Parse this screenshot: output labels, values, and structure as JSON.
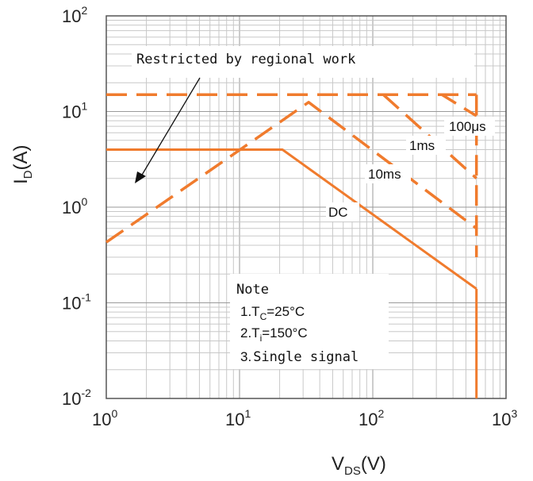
{
  "chart_data": {
    "type": "line",
    "title": "",
    "xscale": "log",
    "yscale": "log",
    "xlim": [
      1,
      1000
    ],
    "ylim": [
      0.01,
      100
    ],
    "grid": true,
    "xlabel": {
      "main": "V",
      "sub": "DS",
      "tail": "(V)"
    },
    "ylabel": {
      "main": "I",
      "sub": "D",
      "tail": "(A)"
    },
    "x_ticks": [
      {
        "base": "10",
        "exp": "0"
      },
      {
        "base": "10",
        "exp": "1"
      },
      {
        "base": "10",
        "exp": "2"
      },
      {
        "base": "10",
        "exp": "3"
      }
    ],
    "y_ticks": [
      {
        "base": "10",
        "exp": "-2"
      },
      {
        "base": "10",
        "exp": "-1"
      },
      {
        "base": "10",
        "exp": "0"
      },
      {
        "base": "10",
        "exp": "1"
      },
      {
        "base": "10",
        "exp": "2"
      }
    ],
    "color": "#f07b2d",
    "series": [
      {
        "name": "DC",
        "style": "solid",
        "points": [
          [
            1,
            4
          ],
          [
            21,
            4
          ],
          [
            600,
            0.14
          ]
        ]
      },
      {
        "name": "10ms",
        "style": "dashed",
        "points": [
          [
            1,
            0.43
          ],
          [
            33,
            12.5
          ],
          [
            600,
            0.6
          ]
        ]
      },
      {
        "name": "1ms",
        "style": "dashed",
        "points": [
          [
            120,
            15
          ],
          [
            600,
            2
          ]
        ]
      },
      {
        "name": "100μs",
        "style": "dashed",
        "points": [
          [
            1,
            15
          ],
          [
            330,
            15
          ],
          [
            600,
            9
          ]
        ]
      },
      {
        "name": "",
        "style": "dashed",
        "points": [
          [
            1,
            15
          ],
          [
            600,
            15
          ]
        ]
      },
      {
        "name": "",
        "style": "dashed",
        "points": [
          [
            600,
            15
          ],
          [
            600,
            0.3
          ]
        ]
      },
      {
        "name": "",
        "style": "solid",
        "points": [
          [
            600,
            0.14
          ],
          [
            600,
            0.01
          ]
        ]
      }
    ],
    "annotations": {
      "restricted": "Restricted by regional work",
      "note_title": "Note",
      "note_items": [
        {
          "prefix": "1.T",
          "sub": "C",
          "suffix": "=25°C"
        },
        {
          "prefix": "2.T",
          "sub": "i",
          "suffix": "=150°C"
        },
        {
          "prefix": "3.",
          "sub": "",
          "suffix": "Single signal"
        }
      ]
    }
  }
}
